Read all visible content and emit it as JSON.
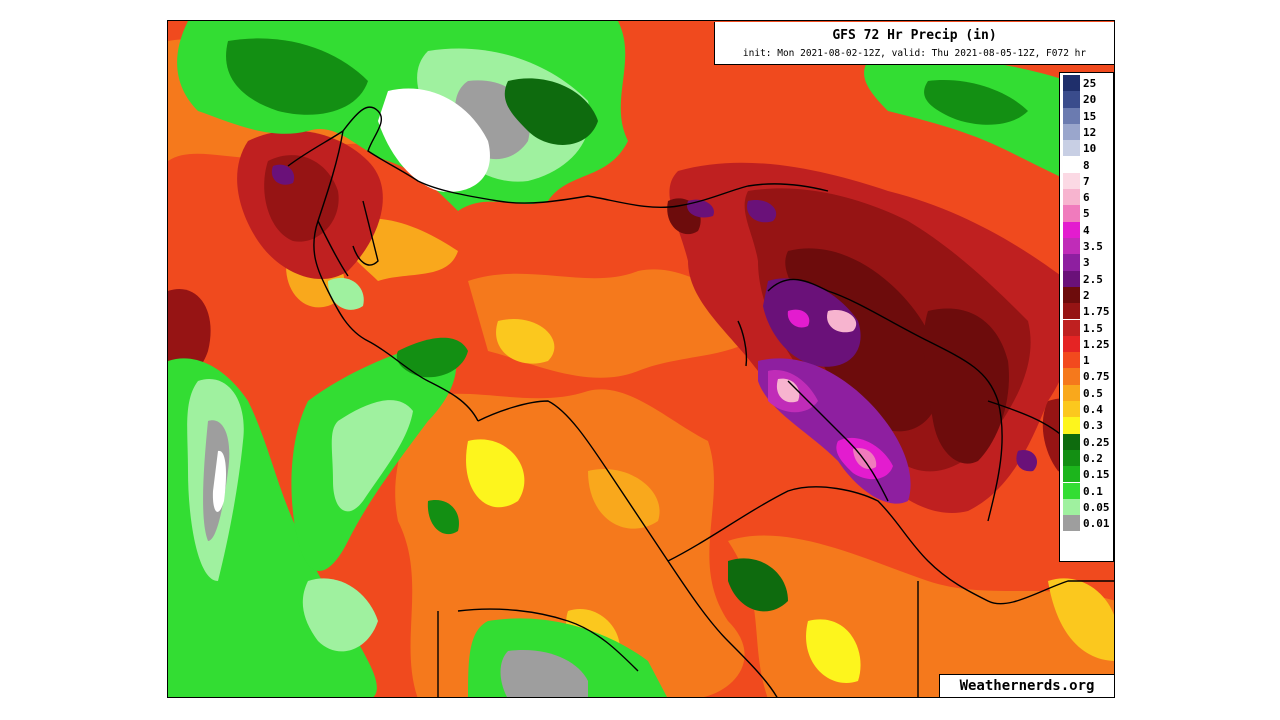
{
  "map": {
    "title": "GFS 72 Hr Precip (in)",
    "subtitle": "init: Mon 2021-08-02-12Z, valid: Thu 2021-08-05-12Z, F072 hr",
    "credit": "Weathernerds.org",
    "legend": [
      {
        "label": "25",
        "color": "#1f2f6b"
      },
      {
        "label": "20",
        "color": "#3a4c8c"
      },
      {
        "label": "15",
        "color": "#6b7bb0"
      },
      {
        "label": "12",
        "color": "#9aa6cc"
      },
      {
        "label": "10",
        "color": "#c8cfe4"
      },
      {
        "label": "8",
        "color": "#ffffff"
      },
      {
        "label": "7",
        "color": "#fbd9e4"
      },
      {
        "label": "6",
        "color": "#f7b4cf"
      },
      {
        "label": "5",
        "color": "#f07bbd"
      },
      {
        "label": "4",
        "color": "#e31ccf"
      },
      {
        "label": "3.5",
        "color": "#c02cb8"
      },
      {
        "label": "3",
        "color": "#8e1fa0"
      },
      {
        "label": "2.5",
        "color": "#6a1179"
      },
      {
        "label": "2",
        "color": "#6d0c0c"
      },
      {
        "label": "1.75",
        "color": "#961414"
      },
      {
        "label": "1.5",
        "color": "#bf2020"
      },
      {
        "label": "1.25",
        "color": "#e52424"
      },
      {
        "label": "1",
        "color": "#f24a1e"
      },
      {
        "label": "0.75",
        "color": "#f5791c"
      },
      {
        "label": "0.5",
        "color": "#f9a81c"
      },
      {
        "label": "0.4",
        "color": "#fbc81e"
      },
      {
        "label": "0.3",
        "color": "#fdf51d"
      },
      {
        "label": "0.25",
        "color": "#0e6b0e"
      },
      {
        "label": "0.2",
        "color": "#138f13"
      },
      {
        "label": "0.15",
        "color": "#1cb51c"
      },
      {
        "label": "0.1",
        "color": "#33dd33"
      },
      {
        "label": "0.05",
        "color": "#9ff19f"
      },
      {
        "label": "0.01",
        "color": "#9e9e9e"
      },
      {
        "label": "",
        "color": "#ffffff"
      }
    ]
  }
}
